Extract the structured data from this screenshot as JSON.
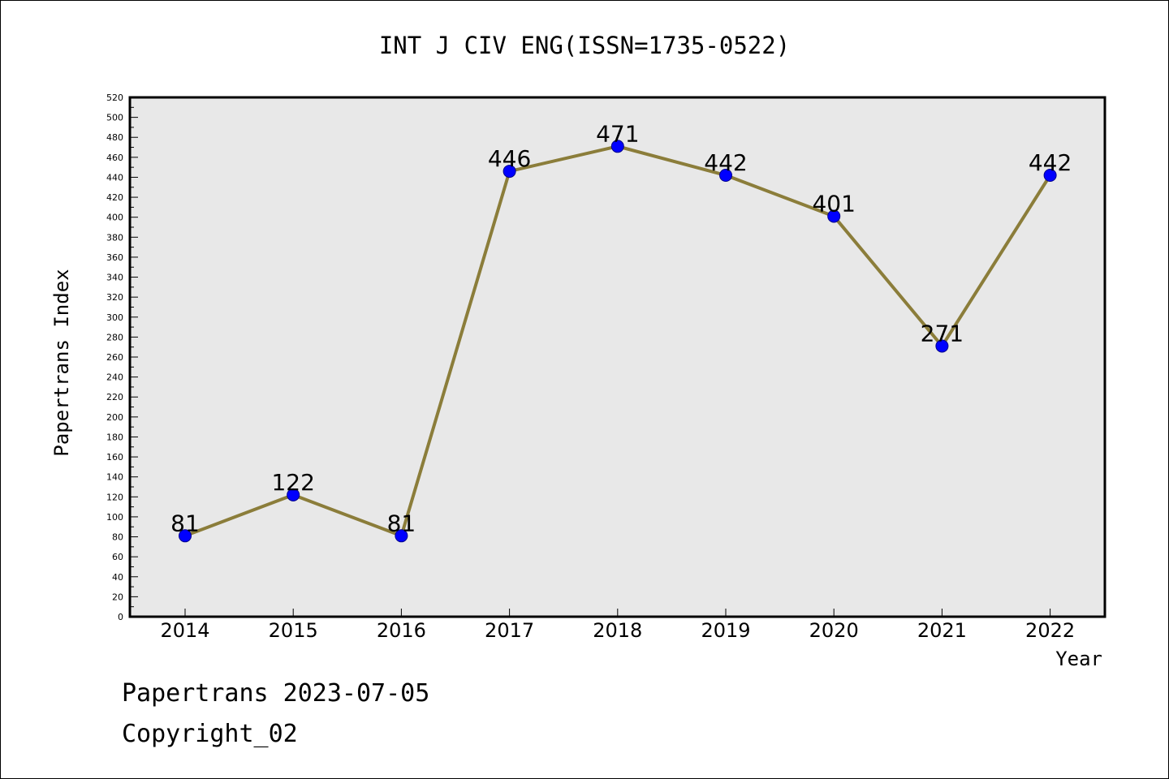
{
  "chart_data": {
    "type": "line",
    "title": "INT J CIV ENG(ISSN=1735-0522)",
    "xlabel": "Year",
    "ylabel": "Papertrans Index",
    "categories": [
      "2014",
      "2015",
      "2016",
      "2017",
      "2018",
      "2019",
      "2020",
      "2021",
      "2022"
    ],
    "series": [
      {
        "values": [
          81,
          122,
          81,
          446,
          471,
          442,
          401,
          271,
          442
        ]
      }
    ],
    "data_labels": [
      "81",
      "122",
      "81",
      "446",
      "471",
      "442",
      "401",
      "271",
      "442"
    ],
    "ylim": [
      0,
      520
    ],
    "yticks": [
      "0",
      "20",
      "40",
      "60",
      "80",
      "100",
      "120",
      "140",
      "160",
      "180",
      "200",
      "220",
      "240",
      "260",
      "280",
      "300",
      "320",
      "340",
      "360",
      "380",
      "400",
      "420",
      "440",
      "460",
      "480",
      "500",
      "520"
    ],
    "grid": false,
    "legend": "none",
    "colors": {
      "plot_background": "#e8e8e8",
      "line": "#8b7d3a",
      "marker": "#0000ff"
    }
  },
  "footer": {
    "line1": "Papertrans 2023-07-05",
    "line2": "Copyright_02"
  }
}
